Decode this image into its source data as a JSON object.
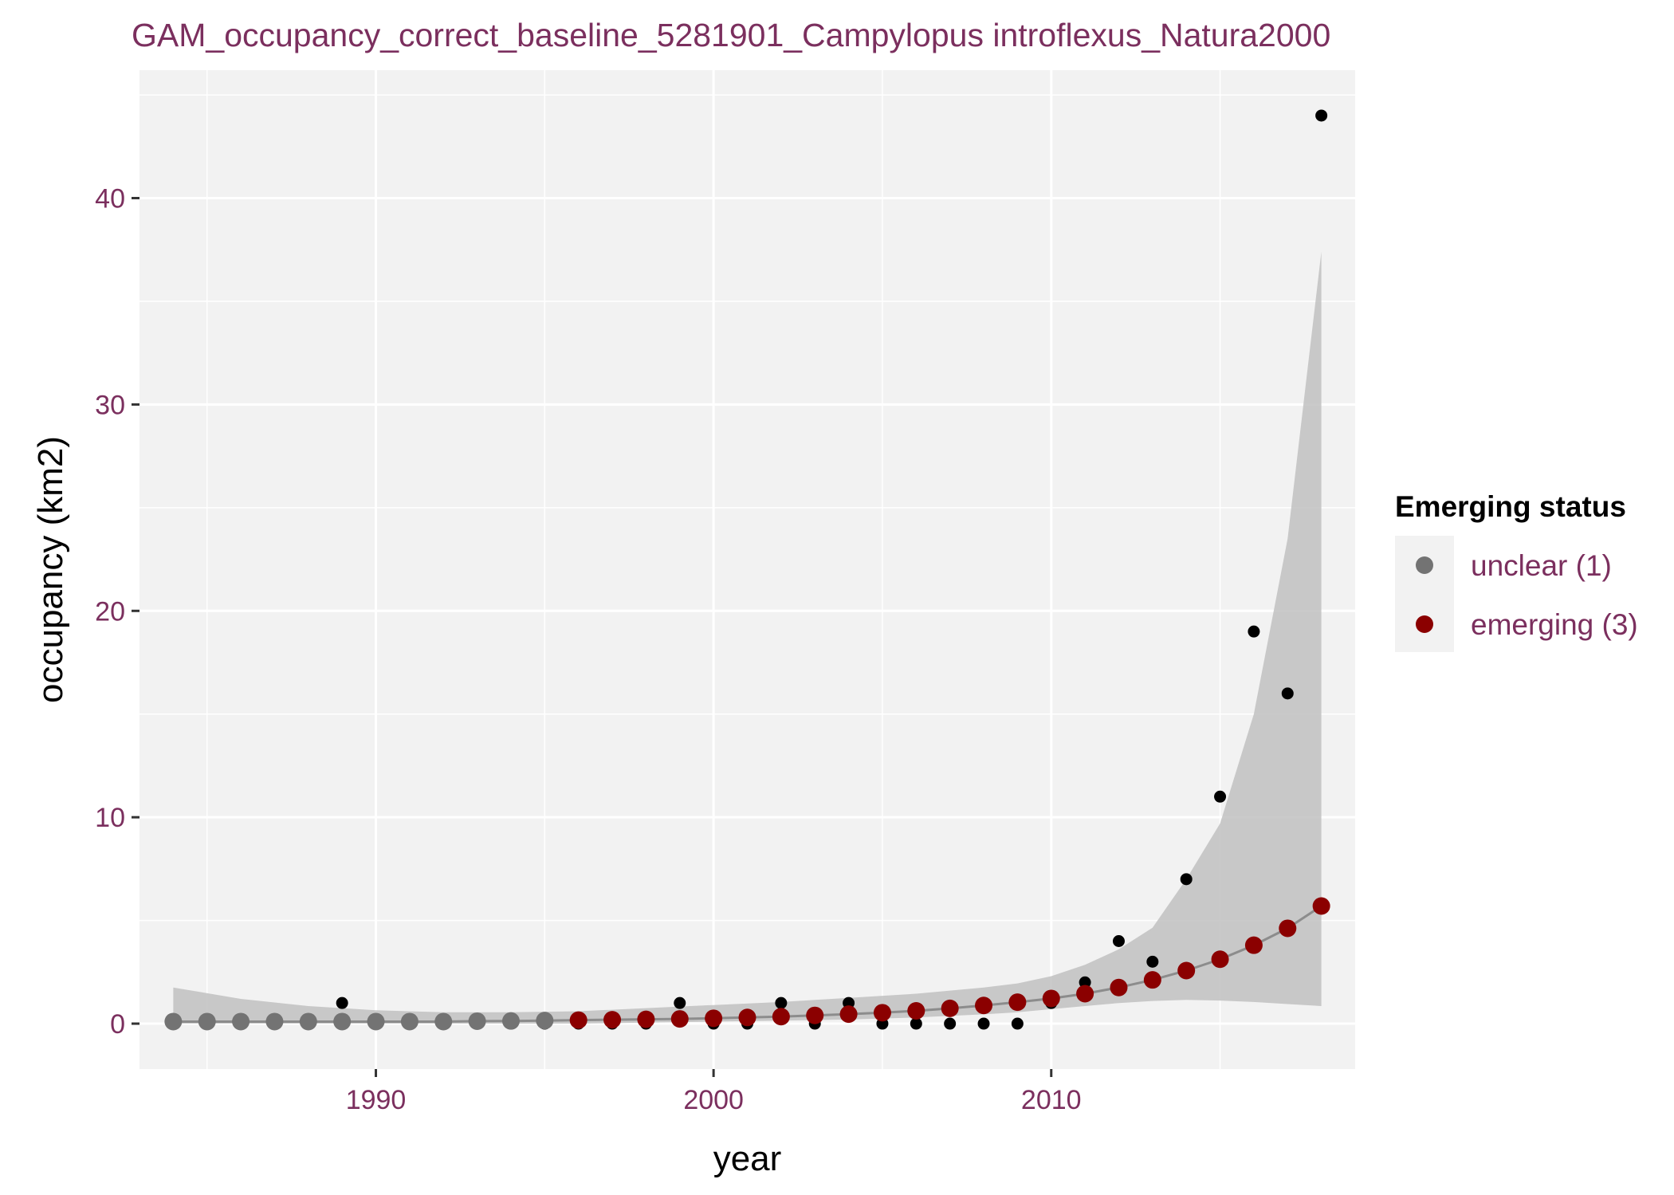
{
  "chart_data": {
    "type": "scatter",
    "title": "GAM_occupancy_correct_baseline_5281901_Campylopus introflexus_Natura2000",
    "xlabel": "year",
    "ylabel": "occupancy (km2)",
    "xlim": [
      1983,
      2019
    ],
    "ylim": [
      -2.2,
      46.2
    ],
    "x_ticks": [
      1990,
      2000,
      2010
    ],
    "y_ticks": [
      0,
      10,
      20,
      30,
      40
    ],
    "grid": true,
    "legend": {
      "title": "Emerging status",
      "position": "right",
      "entries": [
        {
          "label": "unclear (1)",
          "color": "#737373"
        },
        {
          "label": "emerging (3)",
          "color": "#8b0000"
        }
      ]
    },
    "observed": {
      "color": "#000000",
      "x": [
        1984,
        1985,
        1986,
        1987,
        1988,
        1989,
        1990,
        1991,
        1992,
        1993,
        1994,
        1995,
        1996,
        1997,
        1998,
        1999,
        2000,
        2001,
        2002,
        2003,
        2004,
        2005,
        2006,
        2007,
        2008,
        2009,
        2010,
        2011,
        2012,
        2013,
        2014,
        2015,
        2016,
        2017,
        2018
      ],
      "y": [
        0,
        0,
        0,
        0,
        0,
        1,
        0,
        0,
        0,
        0,
        0,
        0,
        0,
        0,
        0,
        1,
        0,
        0,
        1,
        0,
        1,
        0,
        0,
        0,
        0,
        0,
        1,
        2,
        4,
        3,
        7,
        11,
        19,
        16,
        44
      ]
    },
    "fitted": {
      "x": [
        1984,
        1985,
        1986,
        1987,
        1988,
        1989,
        1990,
        1991,
        1992,
        1993,
        1994,
        1995,
        1996,
        1997,
        1998,
        1999,
        2000,
        2001,
        2002,
        2003,
        2004,
        2005,
        2006,
        2007,
        2008,
        2009,
        2010,
        2011,
        2012,
        2013,
        2014,
        2015,
        2016,
        2017,
        2018
      ],
      "y": [
        0.1,
        0.1,
        0.1,
        0.1,
        0.1,
        0.1,
        0.1,
        0.1,
        0.1,
        0.12,
        0.13,
        0.15,
        0.17,
        0.19,
        0.21,
        0.23,
        0.26,
        0.3,
        0.34,
        0.4,
        0.46,
        0.53,
        0.62,
        0.74,
        0.88,
        1.04,
        1.22,
        1.45,
        1.75,
        2.12,
        2.57,
        3.12,
        3.8,
        4.62,
        5.7
      ],
      "status": [
        "unclear",
        "unclear",
        "unclear",
        "unclear",
        "unclear",
        "unclear",
        "unclear",
        "unclear",
        "unclear",
        "unclear",
        "unclear",
        "unclear",
        "emerging",
        "emerging",
        "emerging",
        "emerging",
        "emerging",
        "emerging",
        "emerging",
        "emerging",
        "emerging",
        "emerging",
        "emerging",
        "emerging",
        "emerging",
        "emerging",
        "emerging",
        "emerging",
        "emerging",
        "emerging",
        "emerging",
        "emerging",
        "emerging",
        "emerging",
        "emerging"
      ]
    },
    "confidence_band": {
      "x": [
        1984,
        1986,
        1988,
        1990,
        1992,
        1994,
        1996,
        1998,
        2000,
        2002,
        2004,
        2006,
        2008,
        2009,
        2010,
        2011,
        2012,
        2013,
        2014,
        2015,
        2016,
        2017,
        2018
      ],
      "lower": [
        0,
        0,
        0,
        0,
        0,
        0,
        0,
        0.05,
        0.1,
        0.15,
        0.2,
        0.3,
        0.45,
        0.55,
        0.7,
        0.85,
        1.0,
        1.1,
        1.15,
        1.12,
        1.05,
        0.95,
        0.85
      ],
      "upper": [
        1.75,
        1.2,
        0.85,
        0.65,
        0.55,
        0.55,
        0.6,
        0.75,
        0.9,
        1.05,
        1.25,
        1.45,
        1.75,
        1.95,
        2.3,
        2.85,
        3.6,
        4.65,
        7.0,
        9.7,
        15.0,
        23.5,
        37.4
      ]
    }
  }
}
